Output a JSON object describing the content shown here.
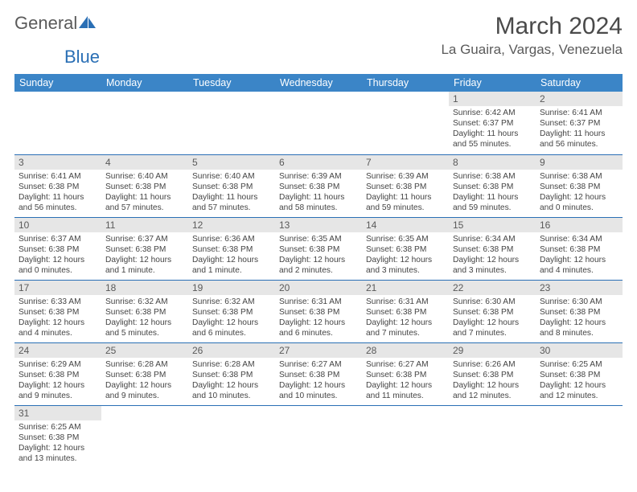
{
  "logo": {
    "word1": "General",
    "word2": "Blue"
  },
  "title": "March 2024",
  "location": "La Guaira, Vargas, Venezuela",
  "header_bg": "#3b85c7",
  "row_divider": "#2a6fb5",
  "daynum_bg": "#e6e6e6",
  "weekdays": [
    "Sunday",
    "Monday",
    "Tuesday",
    "Wednesday",
    "Thursday",
    "Friday",
    "Saturday"
  ],
  "days": {
    "1": {
      "sunrise": "Sunrise: 6:42 AM",
      "sunset": "Sunset: 6:37 PM",
      "daylight": "Daylight: 11 hours and 55 minutes."
    },
    "2": {
      "sunrise": "Sunrise: 6:41 AM",
      "sunset": "Sunset: 6:37 PM",
      "daylight": "Daylight: 11 hours and 56 minutes."
    },
    "3": {
      "sunrise": "Sunrise: 6:41 AM",
      "sunset": "Sunset: 6:38 PM",
      "daylight": "Daylight: 11 hours and 56 minutes."
    },
    "4": {
      "sunrise": "Sunrise: 6:40 AM",
      "sunset": "Sunset: 6:38 PM",
      "daylight": "Daylight: 11 hours and 57 minutes."
    },
    "5": {
      "sunrise": "Sunrise: 6:40 AM",
      "sunset": "Sunset: 6:38 PM",
      "daylight": "Daylight: 11 hours and 57 minutes."
    },
    "6": {
      "sunrise": "Sunrise: 6:39 AM",
      "sunset": "Sunset: 6:38 PM",
      "daylight": "Daylight: 11 hours and 58 minutes."
    },
    "7": {
      "sunrise": "Sunrise: 6:39 AM",
      "sunset": "Sunset: 6:38 PM",
      "daylight": "Daylight: 11 hours and 59 minutes."
    },
    "8": {
      "sunrise": "Sunrise: 6:38 AM",
      "sunset": "Sunset: 6:38 PM",
      "daylight": "Daylight: 11 hours and 59 minutes."
    },
    "9": {
      "sunrise": "Sunrise: 6:38 AM",
      "sunset": "Sunset: 6:38 PM",
      "daylight": "Daylight: 12 hours and 0 minutes."
    },
    "10": {
      "sunrise": "Sunrise: 6:37 AM",
      "sunset": "Sunset: 6:38 PM",
      "daylight": "Daylight: 12 hours and 0 minutes."
    },
    "11": {
      "sunrise": "Sunrise: 6:37 AM",
      "sunset": "Sunset: 6:38 PM",
      "daylight": "Daylight: 12 hours and 1 minute."
    },
    "12": {
      "sunrise": "Sunrise: 6:36 AM",
      "sunset": "Sunset: 6:38 PM",
      "daylight": "Daylight: 12 hours and 1 minute."
    },
    "13": {
      "sunrise": "Sunrise: 6:35 AM",
      "sunset": "Sunset: 6:38 PM",
      "daylight": "Daylight: 12 hours and 2 minutes."
    },
    "14": {
      "sunrise": "Sunrise: 6:35 AM",
      "sunset": "Sunset: 6:38 PM",
      "daylight": "Daylight: 12 hours and 3 minutes."
    },
    "15": {
      "sunrise": "Sunrise: 6:34 AM",
      "sunset": "Sunset: 6:38 PM",
      "daylight": "Daylight: 12 hours and 3 minutes."
    },
    "16": {
      "sunrise": "Sunrise: 6:34 AM",
      "sunset": "Sunset: 6:38 PM",
      "daylight": "Daylight: 12 hours and 4 minutes."
    },
    "17": {
      "sunrise": "Sunrise: 6:33 AM",
      "sunset": "Sunset: 6:38 PM",
      "daylight": "Daylight: 12 hours and 4 minutes."
    },
    "18": {
      "sunrise": "Sunrise: 6:32 AM",
      "sunset": "Sunset: 6:38 PM",
      "daylight": "Daylight: 12 hours and 5 minutes."
    },
    "19": {
      "sunrise": "Sunrise: 6:32 AM",
      "sunset": "Sunset: 6:38 PM",
      "daylight": "Daylight: 12 hours and 6 minutes."
    },
    "20": {
      "sunrise": "Sunrise: 6:31 AM",
      "sunset": "Sunset: 6:38 PM",
      "daylight": "Daylight: 12 hours and 6 minutes."
    },
    "21": {
      "sunrise": "Sunrise: 6:31 AM",
      "sunset": "Sunset: 6:38 PM",
      "daylight": "Daylight: 12 hours and 7 minutes."
    },
    "22": {
      "sunrise": "Sunrise: 6:30 AM",
      "sunset": "Sunset: 6:38 PM",
      "daylight": "Daylight: 12 hours and 7 minutes."
    },
    "23": {
      "sunrise": "Sunrise: 6:30 AM",
      "sunset": "Sunset: 6:38 PM",
      "daylight": "Daylight: 12 hours and 8 minutes."
    },
    "24": {
      "sunrise": "Sunrise: 6:29 AM",
      "sunset": "Sunset: 6:38 PM",
      "daylight": "Daylight: 12 hours and 9 minutes."
    },
    "25": {
      "sunrise": "Sunrise: 6:28 AM",
      "sunset": "Sunset: 6:38 PM",
      "daylight": "Daylight: 12 hours and 9 minutes."
    },
    "26": {
      "sunrise": "Sunrise: 6:28 AM",
      "sunset": "Sunset: 6:38 PM",
      "daylight": "Daylight: 12 hours and 10 minutes."
    },
    "27": {
      "sunrise": "Sunrise: 6:27 AM",
      "sunset": "Sunset: 6:38 PM",
      "daylight": "Daylight: 12 hours and 10 minutes."
    },
    "28": {
      "sunrise": "Sunrise: 6:27 AM",
      "sunset": "Sunset: 6:38 PM",
      "daylight": "Daylight: 12 hours and 11 minutes."
    },
    "29": {
      "sunrise": "Sunrise: 6:26 AM",
      "sunset": "Sunset: 6:38 PM",
      "daylight": "Daylight: 12 hours and 12 minutes."
    },
    "30": {
      "sunrise": "Sunrise: 6:25 AM",
      "sunset": "Sunset: 6:38 PM",
      "daylight": "Daylight: 12 hours and 12 minutes."
    },
    "31": {
      "sunrise": "Sunrise: 6:25 AM",
      "sunset": "Sunset: 6:38 PM",
      "daylight": "Daylight: 12 hours and 13 minutes."
    }
  },
  "grid": [
    [
      null,
      null,
      null,
      null,
      null,
      "1",
      "2"
    ],
    [
      "3",
      "4",
      "5",
      "6",
      "7",
      "8",
      "9"
    ],
    [
      "10",
      "11",
      "12",
      "13",
      "14",
      "15",
      "16"
    ],
    [
      "17",
      "18",
      "19",
      "20",
      "21",
      "22",
      "23"
    ],
    [
      "24",
      "25",
      "26",
      "27",
      "28",
      "29",
      "30"
    ],
    [
      "31",
      null,
      null,
      null,
      null,
      null,
      null
    ]
  ]
}
